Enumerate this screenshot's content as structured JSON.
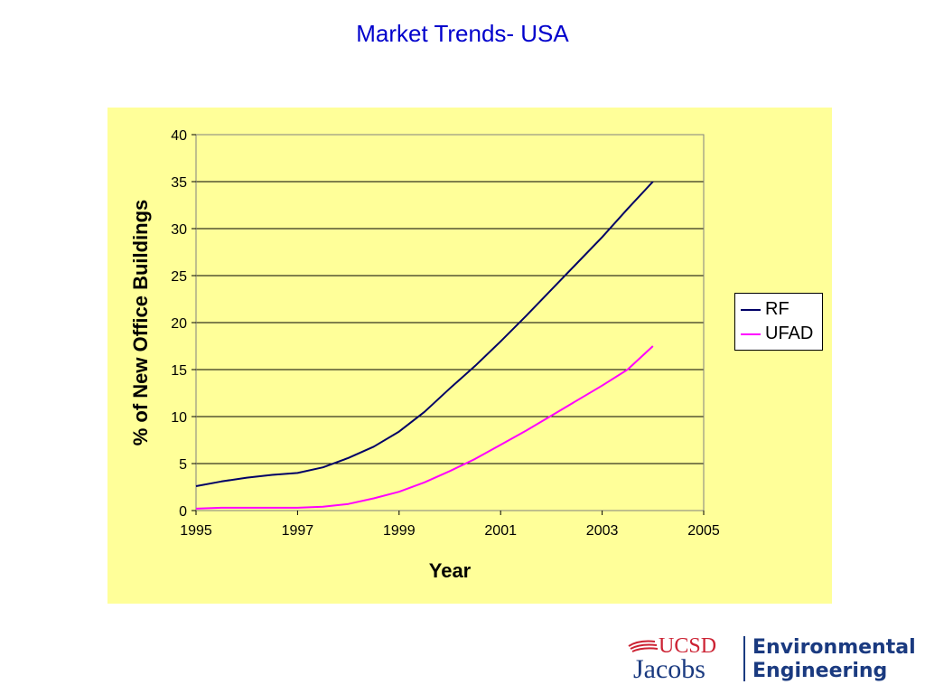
{
  "slide": {
    "title": "Market Trends- USA"
  },
  "chart_data": {
    "type": "line",
    "title": "",
    "xlabel": "Year",
    "ylabel": "% of New Office Buildings",
    "xlim": [
      1995,
      2005
    ],
    "ylim": [
      0,
      40
    ],
    "x_ticks": [
      "1995",
      "1997",
      "1999",
      "2001",
      "2003",
      "2005"
    ],
    "y_ticks": [
      "0",
      "5",
      "10",
      "15",
      "20",
      "25",
      "30",
      "35",
      "40"
    ],
    "grid": "horizontal",
    "legend_position": "right",
    "background_color": "#ffff99",
    "series": [
      {
        "name": "RF",
        "color": "#000066",
        "x": [
          1995,
          1995.5,
          1996,
          1996.5,
          1997,
          1997.5,
          1998,
          1998.5,
          1999,
          1999.5,
          2000,
          2000.5,
          2001,
          2001.5,
          2002,
          2002.5,
          2003,
          2003.5,
          2004
        ],
        "y": [
          2.6,
          3.1,
          3.5,
          3.8,
          4.0,
          4.6,
          5.6,
          6.8,
          8.4,
          10.5,
          13.0,
          15.4,
          18.0,
          20.7,
          23.5,
          26.3,
          29.1,
          32.1,
          35.0
        ]
      },
      {
        "name": "UFAD",
        "color": "#ff00ff",
        "x": [
          1995,
          1995.5,
          1996,
          1996.5,
          1997,
          1997.5,
          1998,
          1998.5,
          1999,
          1999.5,
          2000,
          2000.5,
          2001,
          2001.5,
          2002,
          2002.5,
          2003,
          2003.5,
          2004
        ],
        "y": [
          0.2,
          0.3,
          0.3,
          0.3,
          0.3,
          0.4,
          0.7,
          1.3,
          2.0,
          3.0,
          4.2,
          5.5,
          7.0,
          8.5,
          10.1,
          11.7,
          13.3,
          15.0,
          17.5
        ]
      }
    ]
  },
  "logo": {
    "ucsd": "UCSD",
    "jacobs": "Jacobs",
    "line1": "Environmental",
    "line2": "Engineering"
  }
}
